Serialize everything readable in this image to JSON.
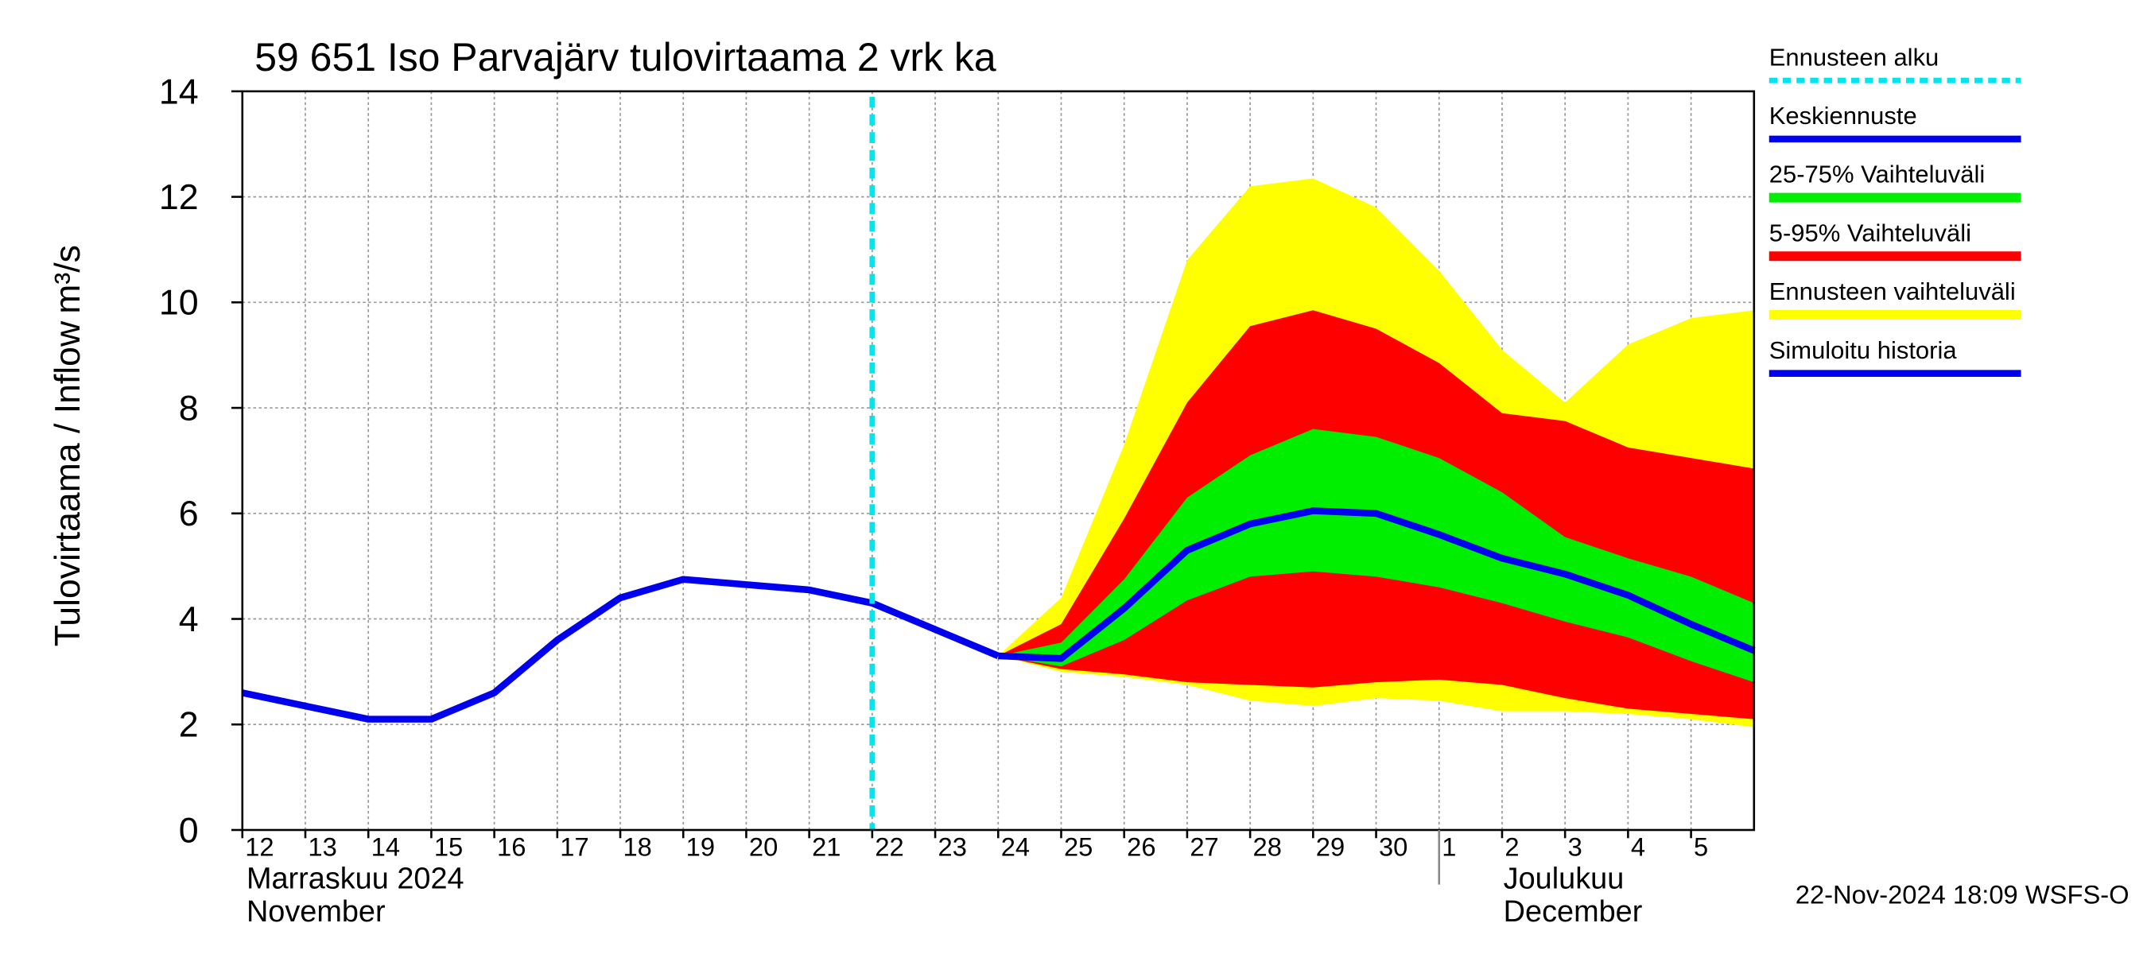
{
  "chart_data": {
    "type": "line",
    "title": "59 651 Iso Parvajärv tulovirtaama 2 vrk ka",
    "y_label": "Tulovirtaama / Inflow",
    "y_unit": "m³/s",
    "footer": "22-Nov-2024 18:09 WSFS-O",
    "x": [
      0,
      1,
      2,
      3,
      4,
      5,
      6,
      7,
      8,
      9,
      10,
      11,
      12,
      13,
      14,
      15,
      16,
      17,
      18,
      19,
      20,
      21,
      22,
      23,
      24
    ],
    "xlim": [
      0,
      24
    ],
    "xticks": [
      {
        "value": 0,
        "label": "12"
      },
      {
        "value": 1,
        "label": "13"
      },
      {
        "value": 2,
        "label": "14"
      },
      {
        "value": 3,
        "label": "15"
      },
      {
        "value": 4,
        "label": "16"
      },
      {
        "value": 5,
        "label": "17"
      },
      {
        "value": 6,
        "label": "18"
      },
      {
        "value": 7,
        "label": "19"
      },
      {
        "value": 8,
        "label": "20"
      },
      {
        "value": 9,
        "label": "21"
      },
      {
        "value": 10,
        "label": "22"
      },
      {
        "value": 11,
        "label": "23"
      },
      {
        "value": 12,
        "label": "24"
      },
      {
        "value": 13,
        "label": "25"
      },
      {
        "value": 14,
        "label": "26"
      },
      {
        "value": 15,
        "label": "27"
      },
      {
        "value": 16,
        "label": "28"
      },
      {
        "value": 17,
        "label": "29"
      },
      {
        "value": 18,
        "label": "30"
      },
      {
        "value": 19,
        "label": "1"
      },
      {
        "value": 20,
        "label": "2"
      },
      {
        "value": 21,
        "label": "3"
      },
      {
        "value": 22,
        "label": "4"
      },
      {
        "value": 23,
        "label": "5"
      }
    ],
    "ylim": [
      0,
      14
    ],
    "yticks": [
      0,
      2,
      4,
      6,
      8,
      10,
      12,
      14
    ],
    "grid": true,
    "months": [
      {
        "start": 0,
        "lines": [
          "Marraskuu 2024",
          "November"
        ]
      },
      {
        "start": 19,
        "lines": [
          "Joulukuu",
          "December"
        ]
      }
    ],
    "forecast_start": {
      "name": "Ennusteen alku",
      "color": "#00e5ee",
      "x": 10
    },
    "bands": [
      {
        "name": "Ennusteen vaihteluväli",
        "color": "#ffff00",
        "low": [
          null,
          null,
          null,
          null,
          null,
          null,
          null,
          null,
          null,
          null,
          null,
          null,
          3.3,
          3.0,
          2.9,
          2.75,
          2.45,
          2.35,
          2.5,
          2.45,
          2.25,
          2.25,
          2.2,
          2.1,
          1.95
        ],
        "high": [
          null,
          null,
          null,
          null,
          null,
          null,
          null,
          null,
          null,
          null,
          null,
          null,
          3.3,
          4.4,
          7.3,
          10.8,
          12.2,
          12.35,
          11.8,
          10.6,
          9.1,
          8.1,
          9.2,
          9.7,
          9.85
        ]
      },
      {
        "name": "5-95% Vaihteluväli",
        "color": "#ff0000",
        "low": [
          null,
          null,
          null,
          null,
          null,
          null,
          null,
          null,
          null,
          null,
          null,
          null,
          3.3,
          3.05,
          2.95,
          2.8,
          2.75,
          2.7,
          2.8,
          2.85,
          2.75,
          2.5,
          2.3,
          2.2,
          2.1
        ],
        "high": [
          null,
          null,
          null,
          null,
          null,
          null,
          null,
          null,
          null,
          null,
          null,
          null,
          3.3,
          3.9,
          5.9,
          8.1,
          9.55,
          9.85,
          9.5,
          8.85,
          7.9,
          7.75,
          7.25,
          7.05,
          6.85
        ]
      },
      {
        "name": "25-75% Vaihteluväli",
        "color": "#00ee00",
        "low": [
          null,
          null,
          null,
          null,
          null,
          null,
          null,
          null,
          null,
          null,
          null,
          null,
          3.3,
          3.1,
          3.6,
          4.35,
          4.8,
          4.9,
          4.8,
          4.6,
          4.3,
          3.95,
          3.65,
          3.2,
          2.8
        ],
        "high": [
          null,
          null,
          null,
          null,
          null,
          null,
          null,
          null,
          null,
          null,
          null,
          null,
          3.3,
          3.55,
          4.75,
          6.3,
          7.1,
          7.6,
          7.45,
          7.05,
          6.4,
          5.55,
          5.15,
          4.8,
          4.3
        ]
      }
    ],
    "series": [
      {
        "name": "Keskiennuste",
        "color": "#0000ee",
        "values": [
          null,
          null,
          null,
          null,
          null,
          null,
          null,
          null,
          null,
          null,
          null,
          null,
          3.3,
          3.25,
          4.2,
          5.3,
          5.8,
          6.05,
          6.0,
          5.6,
          5.15,
          4.85,
          4.45,
          3.9,
          3.4
        ]
      },
      {
        "name": "Simuloitu historia",
        "color": "#0000ee",
        "values": [
          2.6,
          2.35,
          2.1,
          2.1,
          2.6,
          3.6,
          4.4,
          4.75,
          4.65,
          4.55,
          4.3,
          3.8,
          3.3,
          null,
          null,
          null,
          null,
          null,
          null,
          null,
          null,
          null,
          null,
          null,
          null
        ]
      }
    ],
    "legend": [
      "forecast_start",
      "series.0",
      "bands.2",
      "bands.1",
      "bands.0",
      "series.1"
    ]
  }
}
